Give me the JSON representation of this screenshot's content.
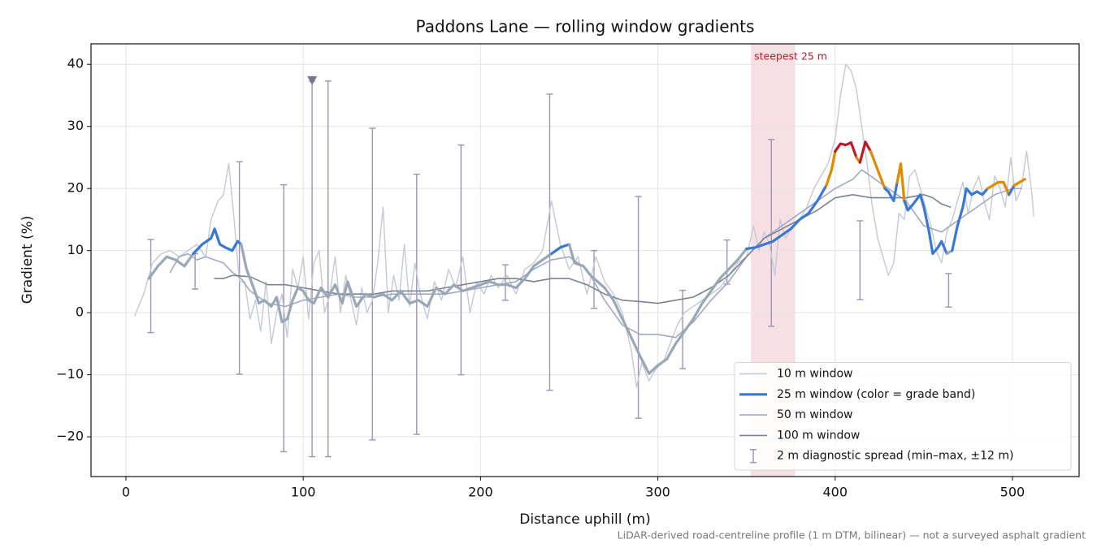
{
  "chart_data": {
    "type": "line",
    "title": "Paddons Lane — rolling window gradients",
    "xlabel": "Distance uphill (m)",
    "ylabel": "Gradient (%)",
    "footnote": "LiDAR-derived road-centreline profile (1 m DTM, bilinear) — not a surveyed asphalt gradient",
    "xlim": [
      -19.7,
      537.6
    ],
    "ylim": [
      -26.4,
      43.3
    ],
    "xticks": [
      0,
      100,
      200,
      300,
      400,
      500
    ],
    "yticks": [
      {
        "value": -20,
        "label": "−20"
      },
      {
        "value": -10,
        "label": "−10"
      },
      0,
      10,
      20,
      30,
      40
    ],
    "grid": true,
    "legend": "lower right",
    "highlight": {
      "label": "steepest 25 m",
      "range": [
        352.5,
        377.5
      ],
      "color": "#e8a6ae"
    },
    "series": [
      {
        "name": "10 m window",
        "color": "#c3cad5",
        "width": 1.4,
        "x": [
          5,
          10,
          15,
          20,
          25,
          30,
          35,
          40,
          45,
          48,
          52,
          55,
          58,
          61,
          64,
          67,
          70,
          73,
          76,
          79,
          82,
          85,
          88,
          91,
          94,
          97,
          100,
          103,
          106,
          109,
          112,
          115,
          118,
          121,
          124,
          127,
          130,
          133,
          136,
          139,
          142,
          145,
          148,
          151,
          154,
          157,
          160,
          163,
          166,
          170,
          174,
          178,
          182,
          186,
          190,
          194,
          198,
          202,
          206,
          210,
          215,
          220,
          225,
          230,
          235,
          240,
          245,
          250,
          255,
          260,
          265,
          270,
          275,
          280,
          285,
          288,
          291,
          295,
          299,
          303,
          307,
          311,
          315,
          320,
          325,
          330,
          335,
          340,
          345,
          350,
          354,
          357,
          360,
          363,
          366,
          369,
          372,
          376,
          380,
          384,
          388,
          392,
          396,
          400,
          403,
          406,
          409,
          412,
          415,
          418,
          421,
          424,
          427,
          430,
          433,
          436,
          439,
          442,
          445,
          448,
          451,
          454,
          457,
          460,
          463,
          466,
          469,
          472,
          475,
          478,
          481,
          484,
          487,
          490,
          493,
          496,
          499,
          502,
          505,
          508,
          511,
          512
        ],
        "values": [
          -0.5,
          3,
          8,
          9.5,
          10,
          9,
          10,
          11,
          9,
          15,
          18,
          19,
          24,
          15,
          5,
          5,
          -1,
          2,
          -3,
          5,
          -5,
          0,
          3,
          -4,
          7,
          4,
          9,
          -1,
          8,
          10,
          0,
          3,
          9,
          0,
          6,
          2,
          -2,
          4,
          0,
          2,
          8,
          17,
          0,
          6,
          2,
          11,
          1,
          8,
          3,
          -1,
          5,
          2,
          7,
          4,
          9,
          0,
          5,
          3,
          6,
          4,
          6,
          3,
          7,
          8,
          10,
          18,
          11,
          7,
          9,
          3,
          9,
          5,
          3,
          0,
          -6,
          -12,
          -8,
          -11,
          -9,
          -8,
          -5,
          -2,
          0,
          1,
          2,
          3,
          4,
          6,
          8,
          9,
          14,
          10,
          13,
          11,
          6,
          15,
          12,
          14,
          15,
          17,
          20,
          22,
          24,
          28,
          35,
          40,
          39,
          36,
          30,
          24,
          17,
          12,
          9,
          6,
          8,
          16,
          15,
          22,
          23,
          20,
          17,
          14,
          10,
          8,
          13,
          15,
          18,
          21,
          16,
          20,
          22,
          18,
          15,
          22,
          20,
          17,
          25,
          18,
          20,
          26,
          19,
          15.5
        ]
      },
      {
        "name": "25 m window (color = grade band)",
        "color": "#3a78d4",
        "width": 3.2,
        "grade_bands": {
          "thresholds": [
            10,
            20,
            25
          ],
          "colors": [
            "#9aa7b6",
            "#3a78d4",
            "#e38b00",
            "#c0182a"
          ]
        },
        "x": [
          13,
          18,
          23,
          28,
          33,
          38,
          43,
          48,
          50,
          53,
          56,
          60,
          63,
          65,
          68,
          72,
          75,
          78,
          82,
          85,
          88,
          91,
          94,
          97,
          100,
          103,
          106,
          110,
          114,
          118,
          122,
          125,
          130,
          135,
          140,
          145,
          150,
          155,
          160,
          165,
          170,
          175,
          180,
          185,
          190,
          195,
          200,
          205,
          210,
          215,
          220,
          225,
          230,
          235,
          240,
          245,
          250,
          253,
          258,
          262,
          266,
          270,
          275,
          280,
          285,
          290,
          295,
          300,
          305,
          310,
          315,
          320,
          325,
          330,
          335,
          340,
          345,
          350,
          355,
          360,
          365,
          370,
          375,
          380,
          385,
          390,
          395,
          398,
          400,
          403,
          406,
          409,
          412,
          414,
          417,
          420,
          424,
          428,
          430,
          433,
          435,
          437,
          439,
          441,
          444,
          448,
          450,
          453,
          455,
          458,
          460,
          463,
          466,
          469,
          472,
          474,
          477,
          480,
          483,
          486,
          489,
          492,
          495,
          498,
          501,
          504,
          507
        ],
        "values": [
          5.5,
          7.5,
          9,
          8.5,
          7.5,
          9.5,
          11,
          12,
          13.5,
          11,
          10.5,
          10,
          11.5,
          11,
          7,
          4,
          1.5,
          2,
          1,
          2.5,
          -1.5,
          -1,
          2,
          4,
          3.5,
          2,
          1.5,
          4,
          2.5,
          4.5,
          1.5,
          5,
          1,
          3,
          2.5,
          3,
          2,
          3.5,
          1.5,
          2,
          1,
          4,
          3,
          4.5,
          3.5,
          4,
          4.5,
          5,
          4.5,
          4.5,
          4,
          5.5,
          7.5,
          8.5,
          9.5,
          10.5,
          11,
          8,
          7.5,
          6,
          5,
          4,
          2,
          -1,
          -4,
          -7,
          -9.8,
          -8.5,
          -7.5,
          -5,
          -3,
          -1,
          1.5,
          3.5,
          5.5,
          7,
          8.5,
          10.3,
          10.5,
          11,
          11.5,
          12.5,
          13.5,
          15,
          16,
          18,
          20.5,
          23,
          26,
          27.2,
          27,
          27.4,
          25,
          24.2,
          27.5,
          26,
          23,
          20,
          19.5,
          18,
          21,
          24,
          18,
          16.5,
          17.5,
          19,
          17,
          13,
          9.5,
          10.5,
          11.5,
          9.5,
          10,
          14,
          17,
          20,
          19,
          19.5,
          19,
          20,
          20.5,
          21,
          21,
          19,
          20.5,
          21,
          21.5
        ]
      },
      {
        "name": "50 m window",
        "color": "#a2a9c2",
        "width": 1.6,
        "x": [
          25,
          30,
          35,
          40,
          45,
          50,
          55,
          60,
          65,
          70,
          80,
          90,
          100,
          110,
          120,
          130,
          140,
          150,
          160,
          170,
          180,
          190,
          200,
          210,
          220,
          230,
          240,
          250,
          260,
          270,
          280,
          290,
          300,
          310,
          320,
          330,
          340,
          350,
          360,
          370,
          380,
          390,
          400,
          410,
          415,
          420,
          430,
          440,
          450,
          460,
          470,
          480,
          490,
          500,
          505
        ],
        "values": [
          6.5,
          9,
          9.5,
          8.5,
          9,
          8.5,
          8,
          6.5,
          5.5,
          3.5,
          1.5,
          1,
          2,
          2.5,
          3,
          2.5,
          2.5,
          3,
          3,
          3,
          3,
          3.5,
          4,
          4.5,
          5,
          7,
          8.5,
          9,
          7,
          2,
          -2,
          -3.5,
          -3.5,
          -4,
          -1.5,
          2,
          5,
          9,
          12,
          14,
          16,
          18,
          20,
          21.5,
          23,
          22,
          20,
          18,
          14,
          13,
          15,
          17,
          19,
          20,
          20
        ]
      },
      {
        "name": "100 m window",
        "color": "#7d838f",
        "width": 1.6,
        "x": [
          50,
          55,
          60,
          70,
          80,
          90,
          100,
          110,
          120,
          130,
          140,
          150,
          160,
          170,
          180,
          190,
          200,
          210,
          220,
          230,
          240,
          250,
          260,
          270,
          280,
          290,
          300,
          310,
          320,
          330,
          340,
          350,
          360,
          370,
          380,
          390,
          400,
          410,
          420,
          430,
          440,
          450,
          455,
          460,
          465
        ],
        "values": [
          5.5,
          5.5,
          6,
          5.8,
          4.5,
          4.5,
          4,
          3.5,
          3,
          3,
          3,
          3.5,
          3.5,
          3.5,
          4,
          4.5,
          5,
          5.5,
          5.5,
          5,
          5.5,
          5.5,
          4.5,
          3,
          2,
          1.8,
          1.5,
          2,
          2.5,
          4,
          6,
          9,
          12,
          13.5,
          15,
          16.5,
          18.5,
          19,
          18.5,
          18.5,
          18.5,
          19,
          18.5,
          17.5,
          17
        ]
      }
    ],
    "spread": {
      "name": "2 m diagnostic spread (min–max, ±12 m)",
      "color": "#9c93b8",
      "x": [
        14,
        39,
        64,
        89,
        105,
        114,
        139,
        164,
        189,
        214,
        239,
        264,
        289,
        314,
        339,
        364,
        414,
        464
      ],
      "low": [
        -3.2,
        3.8,
        -9.9,
        -22.4,
        -23.2,
        -23.2,
        -20.5,
        -19.6,
        -10,
        2,
        -12.5,
        0.7,
        -17,
        -9,
        4.6,
        -2.2,
        2.1,
        0.9
      ],
      "high": [
        11.8,
        9.5,
        24.3,
        20.6,
        37.3,
        37.3,
        29.7,
        22.3,
        27,
        7.7,
        35.2,
        10,
        18.7,
        3.6,
        11.7,
        27.9,
        14.8,
        6.3
      ]
    }
  }
}
